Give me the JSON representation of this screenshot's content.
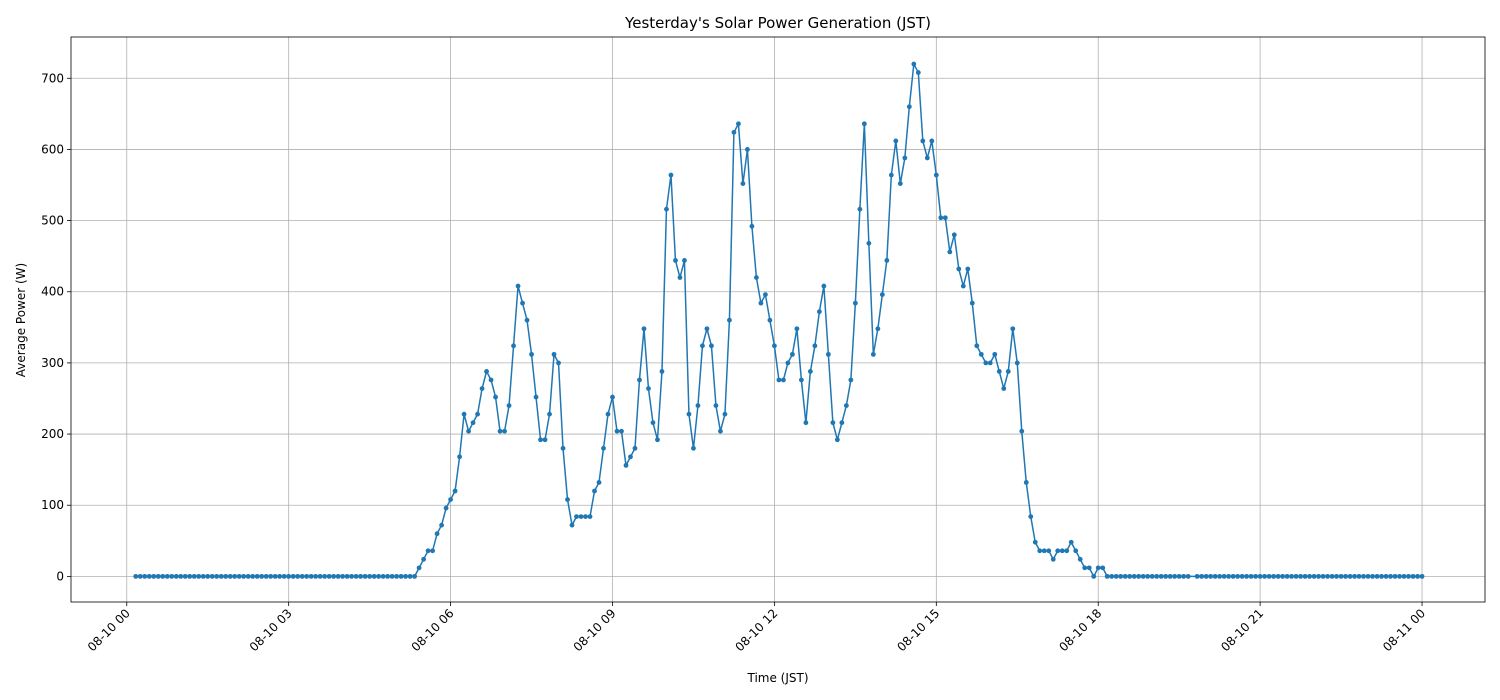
{
  "chart_data": {
    "type": "line",
    "title": "Yesterday's Solar Power Generation (JST)",
    "x_label": "Time (JST)",
    "y_label": "Average Power (W)",
    "color": "#1f77b4",
    "grid": true,
    "markers": true,
    "xlim": [
      -62,
      1510
    ],
    "ylim": [
      -36,
      758
    ],
    "xticks": [
      {
        "value": 0,
        "label": "08-10 00"
      },
      {
        "value": 180,
        "label": "08-10 03"
      },
      {
        "value": 360,
        "label": "08-10 06"
      },
      {
        "value": 540,
        "label": "08-10 09"
      },
      {
        "value": 720,
        "label": "08-10 12"
      },
      {
        "value": 900,
        "label": "08-10 15"
      },
      {
        "value": 1080,
        "label": "08-10 18"
      },
      {
        "value": 1260,
        "label": "08-10 21"
      },
      {
        "value": 1440,
        "label": "08-11 00"
      }
    ],
    "yticks": [
      0,
      100,
      200,
      300,
      400,
      500,
      600,
      700
    ],
    "x": [
      10,
      15,
      20,
      25,
      30,
      35,
      40,
      45,
      50,
      55,
      60,
      65,
      70,
      75,
      80,
      85,
      90,
      95,
      100,
      105,
      110,
      115,
      120,
      125,
      130,
      135,
      140,
      145,
      150,
      155,
      160,
      165,
      170,
      175,
      180,
      185,
      190,
      195,
      200,
      205,
      210,
      215,
      220,
      225,
      230,
      235,
      240,
      245,
      250,
      255,
      260,
      265,
      270,
      275,
      280,
      285,
      290,
      295,
      300,
      305,
      310,
      315,
      320,
      325,
      330,
      335,
      340,
      345,
      350,
      355,
      360,
      365,
      370,
      375,
      380,
      385,
      390,
      395,
      400,
      405,
      410,
      415,
      420,
      425,
      430,
      435,
      440,
      445,
      450,
      455,
      460,
      465,
      470,
      475,
      480,
      485,
      490,
      495,
      500,
      505,
      510,
      515,
      520,
      525,
      530,
      535,
      540,
      545,
      550,
      555,
      560,
      565,
      570,
      575,
      580,
      585,
      590,
      595,
      600,
      605,
      610,
      615,
      620,
      625,
      630,
      635,
      640,
      645,
      650,
      655,
      660,
      665,
      670,
      675,
      680,
      685,
      690,
      695,
      700,
      705,
      710,
      715,
      720,
      725,
      730,
      735,
      740,
      745,
      750,
      755,
      760,
      765,
      770,
      775,
      780,
      785,
      790,
      795,
      800,
      805,
      810,
      815,
      820,
      825,
      830,
      835,
      840,
      845,
      850,
      855,
      860,
      865,
      870,
      875,
      880,
      885,
      890,
      895,
      900,
      905,
      910,
      915,
      920,
      925,
      930,
      935,
      940,
      945,
      950,
      955,
      960,
      965,
      970,
      975,
      980,
      985,
      990,
      995,
      1000,
      1005,
      1010,
      1015,
      1020,
      1025,
      1030,
      1035,
      1040,
      1045,
      1050,
      1055,
      1060,
      1065,
      1070,
      1075,
      1080,
      1085,
      1090,
      1095,
      1100,
      1105,
      1110,
      1115,
      1120,
      1125,
      1130,
      1135,
      1140,
      1145,
      1150,
      1155,
      1160,
      1165,
      1170,
      1175,
      1180,
      1190,
      1195,
      1200,
      1205,
      1210,
      1215,
      1220,
      1225,
      1230,
      1235,
      1240,
      1245,
      1250,
      1255,
      1260,
      1265,
      1270,
      1275,
      1280,
      1285,
      1290,
      1295,
      1300,
      1305,
      1310,
      1315,
      1320,
      1325,
      1330,
      1335,
      1340,
      1345,
      1350,
      1355,
      1360,
      1365,
      1370,
      1375,
      1380,
      1385,
      1390,
      1395,
      1400,
      1405,
      1410,
      1415,
      1420,
      1425,
      1430,
      1435,
      1440
    ],
    "values": [
      0,
      0,
      0,
      0,
      0,
      0,
      0,
      0,
      0,
      0,
      0,
      0,
      0,
      0,
      0,
      0,
      0,
      0,
      0,
      0,
      0,
      0,
      0,
      0,
      0,
      0,
      0,
      0,
      0,
      0,
      0,
      0,
      0,
      0,
      0,
      0,
      0,
      0,
      0,
      0,
      0,
      0,
      0,
      0,
      0,
      0,
      0,
      0,
      0,
      0,
      0,
      0,
      0,
      0,
      0,
      0,
      0,
      0,
      0,
      0,
      0,
      0,
      0,
      12,
      24,
      36,
      36,
      60,
      72,
      96,
      108,
      120,
      168,
      228,
      204,
      216,
      228,
      264,
      288,
      276,
      252,
      204,
      204,
      240,
      324,
      408,
      384,
      360,
      312,
      252,
      192,
      192,
      228,
      312,
      300,
      180,
      108,
      72,
      84,
      84,
      84,
      84,
      120,
      132,
      180,
      228,
      252,
      204,
      204,
      156,
      168,
      180,
      276,
      348,
      264,
      216,
      192,
      288,
      516,
      564,
      444,
      420,
      444,
      228,
      180,
      240,
      324,
      348,
      324,
      240,
      204,
      228,
      360,
      624,
      636,
      552,
      600,
      492,
      420,
      384,
      396,
      360,
      324,
      276,
      276,
      300,
      312,
      348,
      276,
      216,
      288,
      324,
      372,
      408,
      312,
      216,
      192,
      216,
      240,
      276,
      384,
      516,
      636,
      468,
      312,
      348,
      396,
      444,
      564,
      612,
      552,
      588,
      660,
      720,
      708,
      612,
      588,
      612,
      564,
      504,
      504,
      456,
      480,
      432,
      408,
      432,
      384,
      324,
      312,
      300,
      300,
      312,
      288,
      264,
      288,
      348,
      300,
      204,
      132,
      84,
      48,
      36,
      36,
      36,
      24,
      36,
      36,
      36,
      48,
      36,
      24,
      12,
      12,
      0,
      12,
      12,
      0,
      0,
      0,
      0,
      0,
      0,
      0,
      0,
      0,
      0,
      0,
      0,
      0,
      0,
      0,
      0,
      0,
      0,
      0,
      0,
      0,
      0,
      0,
      0,
      0,
      0,
      0,
      0,
      0,
      0,
      0,
      0,
      0,
      0,
      0,
      0,
      0,
      0,
      0,
      0,
      0,
      0,
      0,
      0,
      0,
      0,
      0,
      0,
      0,
      0,
      0,
      0,
      0,
      0,
      0,
      0,
      0,
      0,
      0,
      0,
      0,
      0,
      0,
      0,
      0,
      0,
      0,
      0,
      0,
      0
    ]
  }
}
